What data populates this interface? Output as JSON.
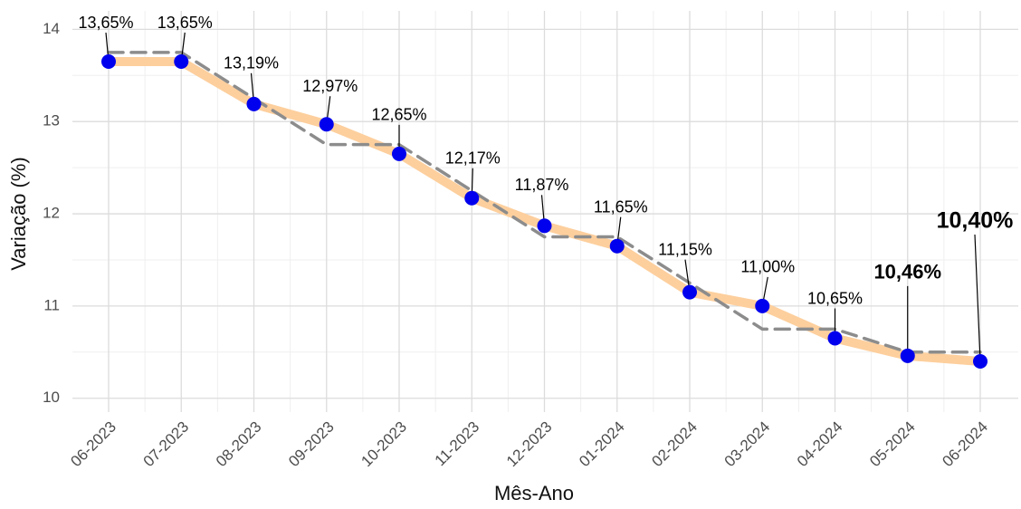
{
  "chart_data": {
    "type": "line",
    "x_label": "Mês-Ano",
    "y_label": "Variação (%)",
    "categories": [
      "06-2023",
      "07-2023",
      "08-2023",
      "09-2023",
      "10-2023",
      "11-2023",
      "12-2023",
      "01-2024",
      "02-2024",
      "03-2024",
      "04-2024",
      "05-2024",
      "06-2024"
    ],
    "series": [
      {
        "color": "#fdcf9d",
        "values": [
          13.65,
          13.65,
          13.19,
          12.97,
          12.65,
          12.17,
          11.87,
          11.65,
          11.15,
          11.0,
          10.65,
          10.46,
          10.4
        ],
        "value_labels": [
          "13,65%",
          "13,65%",
          "13,19%",
          "12,97%",
          "12,65%",
          "12,17%",
          "11,87%",
          "11,65%",
          "11,15%",
          "11,00%",
          "10,65%",
          "10,46%",
          "10,40%"
        ],
        "marker_color": "#0000ee"
      },
      {
        "color": "#8c8c8c",
        "dashed": true,
        "values": [
          13.75,
          13.75,
          13.25,
          12.75,
          12.75,
          12.25,
          11.75,
          11.75,
          11.25,
          10.75,
          10.75,
          10.5,
          10.5
        ]
      }
    ],
    "ylim": [
      9.85,
      14.2
    ],
    "yticks": [
      10,
      11,
      12,
      13,
      14
    ],
    "grid": true
  }
}
